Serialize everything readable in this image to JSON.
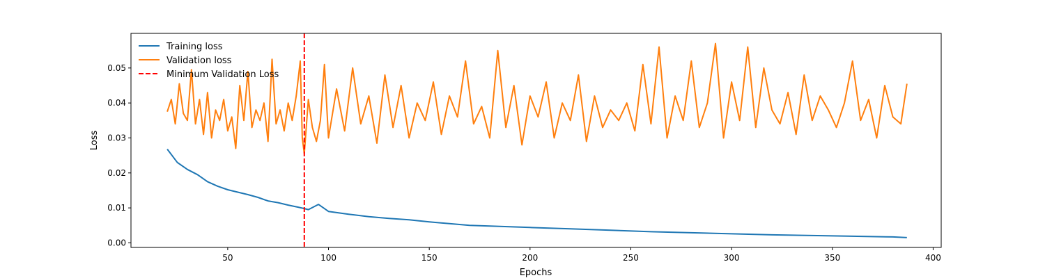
{
  "chart_data": {
    "type": "line",
    "title": "",
    "xlabel": "Epochs",
    "ylabel": "Loss",
    "xlim": [
      2,
      404
    ],
    "ylim": [
      -0.0013,
      0.0599
    ],
    "x_ticks": [
      50,
      100,
      150,
      200,
      250,
      300,
      350,
      400
    ],
    "x_tick_labels": [
      "50",
      "100",
      "150",
      "200",
      "250",
      "300",
      "350",
      "400"
    ],
    "y_ticks": [
      0.0,
      0.01,
      0.02,
      0.03,
      0.04,
      0.05
    ],
    "y_tick_labels": [
      "0.00",
      "0.01",
      "0.02",
      "0.03",
      "0.04",
      "0.05"
    ],
    "grid": false,
    "legend_position": "upper-left",
    "series": [
      {
        "name": "Training loss",
        "color": "#1f77b4",
        "x": [
          20,
          25,
          30,
          35,
          40,
          45,
          50,
          55,
          60,
          65,
          70,
          75,
          80,
          85,
          88,
          90,
          95,
          100,
          110,
          120,
          130,
          140,
          150,
          160,
          170,
          180,
          190,
          200,
          220,
          240,
          260,
          280,
          300,
          320,
          340,
          360,
          380,
          387
        ],
        "y": [
          0.0268,
          0.023,
          0.021,
          0.0195,
          0.0175,
          0.0162,
          0.0152,
          0.0145,
          0.0138,
          0.013,
          0.012,
          0.0115,
          0.0108,
          0.0102,
          0.0098,
          0.0095,
          0.011,
          0.009,
          0.0082,
          0.0075,
          0.007,
          0.0066,
          0.006,
          0.0055,
          0.005,
          0.0048,
          0.0046,
          0.0044,
          0.004,
          0.0036,
          0.0032,
          0.0029,
          0.0026,
          0.0023,
          0.0021,
          0.0019,
          0.0017,
          0.0015
        ]
      },
      {
        "name": "Validation loss",
        "color": "#ff7f0e",
        "x": [
          20,
          22,
          24,
          26,
          28,
          30,
          32,
          34,
          36,
          38,
          40,
          42,
          44,
          46,
          48,
          50,
          52,
          54,
          56,
          58,
          60,
          62,
          64,
          66,
          68,
          70,
          72,
          74,
          76,
          78,
          80,
          82,
          84,
          86,
          87,
          88,
          90,
          92,
          94,
          96,
          98,
          100,
          104,
          108,
          112,
          116,
          120,
          124,
          128,
          132,
          136,
          140,
          144,
          148,
          152,
          156,
          160,
          164,
          168,
          172,
          176,
          180,
          184,
          188,
          192,
          196,
          200,
          204,
          208,
          212,
          216,
          220,
          224,
          228,
          232,
          236,
          240,
          244,
          248,
          252,
          256,
          260,
          264,
          268,
          272,
          276,
          280,
          284,
          288,
          292,
          296,
          300,
          304,
          308,
          312,
          316,
          320,
          324,
          328,
          332,
          336,
          340,
          344,
          348,
          352,
          356,
          360,
          364,
          368,
          372,
          376,
          380,
          384,
          387
        ],
        "y": [
          0.0375,
          0.041,
          0.034,
          0.0455,
          0.037,
          0.035,
          0.0495,
          0.034,
          0.041,
          0.031,
          0.043,
          0.03,
          0.038,
          0.035,
          0.041,
          0.032,
          0.036,
          0.027,
          0.045,
          0.035,
          0.049,
          0.033,
          0.038,
          0.035,
          0.04,
          0.029,
          0.0525,
          0.034,
          0.038,
          0.032,
          0.04,
          0.035,
          0.042,
          0.052,
          0.03,
          0.0255,
          0.041,
          0.033,
          0.029,
          0.035,
          0.051,
          0.03,
          0.044,
          0.032,
          0.05,
          0.034,
          0.042,
          0.0285,
          0.048,
          0.033,
          0.045,
          0.03,
          0.04,
          0.035,
          0.046,
          0.031,
          0.042,
          0.036,
          0.052,
          0.034,
          0.039,
          0.03,
          0.055,
          0.033,
          0.045,
          0.028,
          0.042,
          0.036,
          0.046,
          0.03,
          0.04,
          0.035,
          0.048,
          0.029,
          0.042,
          0.033,
          0.038,
          0.035,
          0.04,
          0.032,
          0.051,
          0.034,
          0.056,
          0.03,
          0.042,
          0.035,
          0.052,
          0.033,
          0.04,
          0.057,
          0.03,
          0.046,
          0.035,
          0.056,
          0.033,
          0.05,
          0.038,
          0.034,
          0.043,
          0.031,
          0.048,
          0.035,
          0.042,
          0.038,
          0.033,
          0.04,
          0.052,
          0.035,
          0.041,
          0.03,
          0.045,
          0.036,
          0.034,
          0.0455
        ]
      },
      {
        "name": "Minimum Validation Loss",
        "color": "#ff0000",
        "style": "dashed",
        "kind": "vertical-line",
        "x_value": 88
      }
    ]
  }
}
